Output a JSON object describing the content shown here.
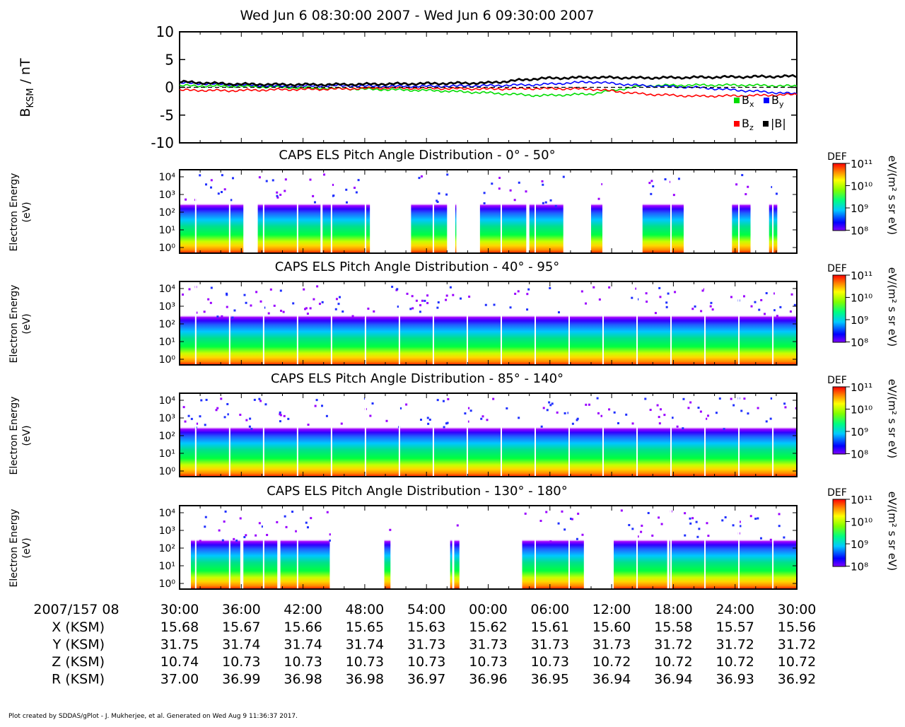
{
  "title": "Wed Jun 6 08:30:00 2007 - Wed Jun 6 09:30:00 2007",
  "footer": "Plot created by SDDAS/gPlot - J. Mukherjee, et al.  Generated on Wed Aug 9 11:36:37 2017.",
  "colors": {
    "bx": "#00dd00",
    "by": "#0000ff",
    "bz": "#ff0000",
    "bmag": "#000000"
  },
  "chart_data": [
    {
      "type": "line",
      "ylabel_main": "B",
      "ylabel_sub": "KSM",
      "ylabel_unit": " / nT",
      "ylim": [
        -10,
        10
      ],
      "yticks": [
        "10",
        "5",
        "0",
        "-5",
        "-10"
      ],
      "xlim": [
        "08:30",
        "09:30"
      ],
      "zero_line": "dashed",
      "legend": [
        {
          "sym": "B",
          "sub": "x"
        },
        {
          "sym": "B",
          "sub": "y"
        },
        {
          "sym": "B",
          "sub": "z"
        },
        {
          "sym": "|B|",
          "sub": ""
        }
      ],
      "x_min": [
        0,
        5,
        10,
        15,
        20,
        25,
        30,
        35,
        40,
        45,
        50,
        55,
        60
      ],
      "series": [
        {
          "key": "bx",
          "values": [
            0.3,
            0.2,
            0.0,
            -0.2,
            -0.4,
            -0.6,
            -1.0,
            -1.5,
            -1.2,
            0.3,
            0.4,
            0.4,
            0.2
          ]
        },
        {
          "key": "by",
          "values": [
            0.8,
            0.5,
            0.2,
            0.3,
            0.2,
            0.2,
            0.3,
            0.5,
            1.0,
            0.3,
            0.0,
            -0.6,
            -1.2
          ]
        },
        {
          "key": "bz",
          "values": [
            -0.5,
            -0.6,
            -0.4,
            -0.3,
            -0.1,
            -0.2,
            -0.3,
            -0.2,
            -0.3,
            -1.2,
            -1.6,
            -1.5,
            -1.3
          ]
        },
        {
          "key": "bmag",
          "values": [
            1.0,
            0.6,
            0.5,
            0.5,
            0.6,
            0.7,
            0.8,
            1.6,
            1.8,
            1.7,
            1.8,
            1.9,
            2.0
          ]
        }
      ]
    },
    {
      "type": "heatmap",
      "title": "CAPS ELS Pitch Angle Distribution - 0° - 50°",
      "ylabel": "Electron Energy",
      "ylabel_unit": "(eV)",
      "yticks": [
        "10⁴",
        "10³",
        "10²",
        "10¹",
        "10⁰"
      ],
      "cbar_label": "DEF",
      "cbar_unit": "eV/(m² s sr eV)",
      "cbar_ticks": [
        "10¹¹",
        "10¹⁰",
        "10⁹",
        "10⁸"
      ],
      "data_intervals_min": [
        [
          0,
          6.2
        ],
        [
          7.6,
          13.7
        ],
        [
          13.9,
          18.5
        ],
        [
          22.5,
          26
        ],
        [
          26.8,
          26.9
        ],
        [
          29.2,
          33.7
        ],
        [
          34,
          37.3
        ],
        [
          40,
          41.2
        ],
        [
          45,
          49
        ],
        [
          53.7,
          55.5
        ],
        [
          57.3,
          58.1
        ]
      ]
    },
    {
      "type": "heatmap",
      "title": "CAPS ELS Pitch Angle Distribution - 40° - 95°",
      "ylabel": "Electron Energy",
      "ylabel_unit": "(eV)",
      "yticks": [
        "10⁴",
        "10³",
        "10²",
        "10¹",
        "10⁰"
      ],
      "cbar_label": "DEF",
      "cbar_unit": "eV/(m² s sr eV)",
      "cbar_ticks": [
        "10¹¹",
        "10¹⁰",
        "10⁹",
        "10⁸"
      ],
      "data_intervals_min": [
        [
          0,
          60
        ]
      ]
    },
    {
      "type": "heatmap",
      "title": "CAPS ELS Pitch Angle Distribution - 85° - 140°",
      "ylabel": "Electron Energy",
      "ylabel_unit": "(eV)",
      "yticks": [
        "10⁴",
        "10³",
        "10²",
        "10¹",
        "10⁰"
      ],
      "cbar_label": "DEF",
      "cbar_unit": "eV/(m² s sr eV)",
      "cbar_ticks": [
        "10¹¹",
        "10¹⁰",
        "10⁹",
        "10⁸"
      ],
      "data_intervals_min": [
        [
          0,
          60
        ]
      ]
    },
    {
      "type": "heatmap",
      "title": "CAPS ELS Pitch Angle Distribution - 130° - 180°",
      "ylabel": "Electron Energy",
      "ylabel_unit": "(eV)",
      "yticks": [
        "10⁴",
        "10³",
        "10²",
        "10¹",
        "10⁰"
      ],
      "cbar_label": "DEF",
      "cbar_unit": "eV/(m² s sr eV)",
      "cbar_ticks": [
        "10¹¹",
        "10¹⁰",
        "10⁹",
        "10⁸"
      ],
      "data_intervals_min": [
        [
          1.1,
          5.9
        ],
        [
          6.2,
          9.5
        ],
        [
          9.8,
          14.6
        ],
        [
          19.9,
          20.5
        ],
        [
          26.3,
          26.5
        ],
        [
          26.7,
          27.2
        ],
        [
          33.3,
          39.3
        ],
        [
          42.2,
          47.4
        ],
        [
          47.6,
          60
        ]
      ]
    }
  ],
  "ephemeris": {
    "date_label": "2007/157 08",
    "times": [
      "30:00",
      "36:00",
      "42:00",
      "48:00",
      "54:00",
      "00:00",
      "06:00",
      "12:00",
      "18:00",
      "24:00",
      "30:00"
    ],
    "rows": [
      {
        "label": "X (KSM)",
        "values": [
          "15.68",
          "15.67",
          "15.66",
          "15.65",
          "15.63",
          "15.62",
          "15.61",
          "15.60",
          "15.58",
          "15.57",
          "15.56"
        ]
      },
      {
        "label": "Y (KSM)",
        "values": [
          "31.75",
          "31.74",
          "31.74",
          "31.74",
          "31.73",
          "31.73",
          "31.73",
          "31.73",
          "31.72",
          "31.72",
          "31.72"
        ]
      },
      {
        "label": "Z (KSM)",
        "values": [
          "10.74",
          "10.73",
          "10.73",
          "10.73",
          "10.73",
          "10.73",
          "10.73",
          "10.72",
          "10.72",
          "10.72",
          "10.72"
        ]
      },
      {
        "label": "R (KSM)",
        "values": [
          "37.00",
          "36.99",
          "36.98",
          "36.98",
          "36.97",
          "36.96",
          "36.95",
          "36.94",
          "36.94",
          "36.93",
          "36.92"
        ]
      }
    ]
  }
}
